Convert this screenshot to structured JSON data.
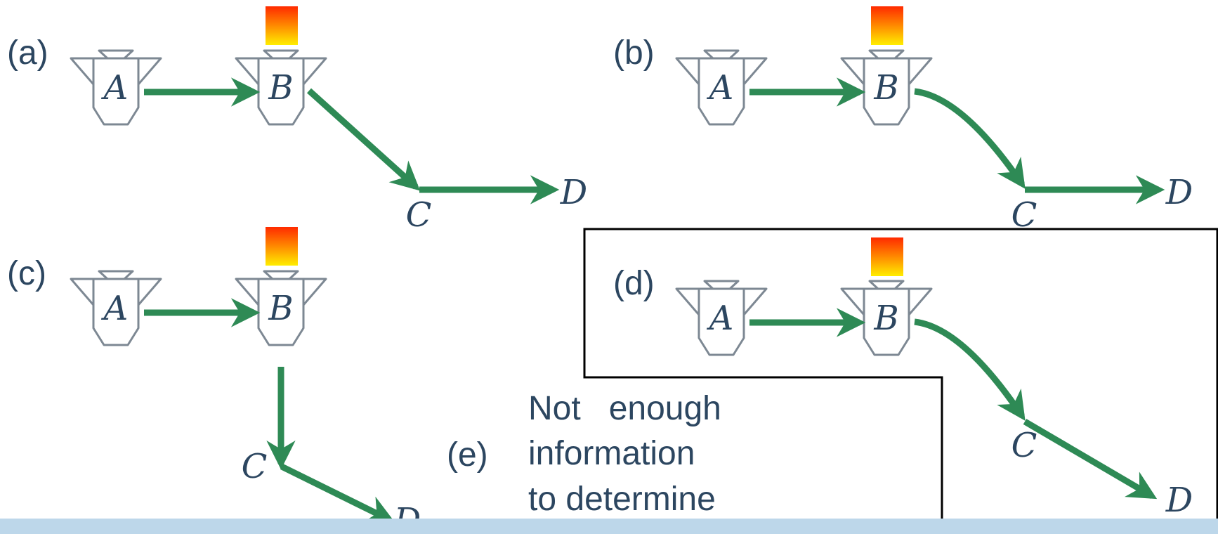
{
  "panels": [
    {
      "id": "a",
      "label": "(a)",
      "nodes": {
        "A": "A",
        "B": "B",
        "C": "C",
        "D": "D"
      }
    },
    {
      "id": "b",
      "label": "(b)",
      "nodes": {
        "A": "A",
        "B": "B",
        "C": "C",
        "D": "D"
      }
    },
    {
      "id": "c",
      "label": "(c)",
      "nodes": {
        "A": "A",
        "B": "B",
        "C": "C",
        "D": "D"
      }
    },
    {
      "id": "d",
      "label": "(d)",
      "nodes": {
        "A": "A",
        "B": "B",
        "C": "C",
        "D": "D"
      }
    }
  ],
  "option_e": {
    "label": "(e)",
    "lines": [
      "Not   enough",
      "information",
      "to determine"
    ]
  },
  "colors": {
    "edge": "#2e8a55",
    "node_text": "#2c4660",
    "device_outline": "#7d8893",
    "heat_top": "#ff2a00",
    "heat_bottom": "#ffee00",
    "highlight_box": "#000000",
    "bottom_bar": "#bdd7ea"
  },
  "icons": [
    "camera-device-icon",
    "heat-source-icon",
    "arrow-icon"
  ]
}
